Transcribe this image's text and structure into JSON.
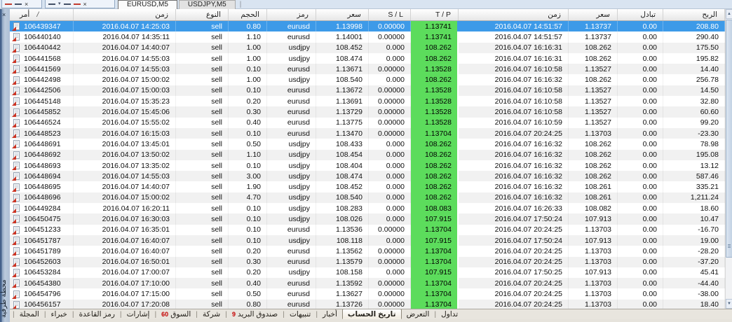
{
  "terminal": {
    "vertical_label": "محطة طرفية",
    "close_glyph": "×"
  },
  "icons": {
    "up_arrow": "▲",
    "down_arrow": "▼",
    "close": "×",
    "separator": "|",
    "sort": "/",
    "caret": "▾"
  },
  "chart_tabs": [
    {
      "label": "EURUSD,M5",
      "active": true
    },
    {
      "label": "USDJPY,M5",
      "active": false
    }
  ],
  "table": {
    "columns": [
      {
        "key": "order",
        "label": "أمر"
      },
      {
        "key": "open_time",
        "label": "زمن"
      },
      {
        "key": "type",
        "label": "النوع"
      },
      {
        "key": "volume",
        "label": "الحجم"
      },
      {
        "key": "symbol",
        "label": "رمز"
      },
      {
        "key": "open_price",
        "label": "سعر"
      },
      {
        "key": "sl",
        "label": "S / L"
      },
      {
        "key": "tp",
        "label": "T / P"
      },
      {
        "key": "close_time",
        "label": "زمن"
      },
      {
        "key": "close_price",
        "label": "سعر"
      },
      {
        "key": "swap",
        "label": "تبادل"
      },
      {
        "key": "profit",
        "label": "الربح"
      }
    ],
    "rows": [
      {
        "order": "106439347",
        "open_time": "2016.04.07 14:25:03",
        "type": "sell",
        "volume": "0.80",
        "symbol": "eurusd",
        "open_price": "1.13998",
        "sl": "0.00000",
        "tp": "1.13741",
        "close_time": "2016.04.07 14:51:57",
        "close_price": "1.13737",
        "swap": "0.00",
        "profit": "208.80",
        "selected": true
      },
      {
        "order": "106440140",
        "open_time": "2016.04.07 14:35:11",
        "type": "sell",
        "volume": "1.10",
        "symbol": "eurusd",
        "open_price": "1.14001",
        "sl": "0.00000",
        "tp": "1.13741",
        "close_time": "2016.04.07 14:51:57",
        "close_price": "1.13737",
        "swap": "0.00",
        "profit": "290.40"
      },
      {
        "order": "106440442",
        "open_time": "2016.04.07 14:40:07",
        "type": "sell",
        "volume": "1.00",
        "symbol": "usdjpy",
        "open_price": "108.452",
        "sl": "0.000",
        "tp": "108.262",
        "close_time": "2016.04.07 16:16:31",
        "close_price": "108.262",
        "swap": "0.00",
        "profit": "175.50"
      },
      {
        "order": "106441568",
        "open_time": "2016.04.07 14:55:03",
        "type": "sell",
        "volume": "1.00",
        "symbol": "usdjpy",
        "open_price": "108.474",
        "sl": "0.000",
        "tp": "108.262",
        "close_time": "2016.04.07 16:16:31",
        "close_price": "108.262",
        "swap": "0.00",
        "profit": "195.82"
      },
      {
        "order": "106441569",
        "open_time": "2016.04.07 14:55:03",
        "type": "sell",
        "volume": "0.10",
        "symbol": "eurusd",
        "open_price": "1.13671",
        "sl": "0.00000",
        "tp": "1.13528",
        "close_time": "2016.04.07 16:10:58",
        "close_price": "1.13527",
        "swap": "0.00",
        "profit": "14.40"
      },
      {
        "order": "106442498",
        "open_time": "2016.04.07 15:00:02",
        "type": "sell",
        "volume": "1.00",
        "symbol": "usdjpy",
        "open_price": "108.540",
        "sl": "0.000",
        "tp": "108.262",
        "close_time": "2016.04.07 16:16:32",
        "close_price": "108.262",
        "swap": "0.00",
        "profit": "256.78"
      },
      {
        "order": "106442506",
        "open_time": "2016.04.07 15:00:03",
        "type": "sell",
        "volume": "0.10",
        "symbol": "eurusd",
        "open_price": "1.13672",
        "sl": "0.00000",
        "tp": "1.13528",
        "close_time": "2016.04.07 16:10:58",
        "close_price": "1.13527",
        "swap": "0.00",
        "profit": "14.50"
      },
      {
        "order": "106445148",
        "open_time": "2016.04.07 15:35:23",
        "type": "sell",
        "volume": "0.20",
        "symbol": "eurusd",
        "open_price": "1.13691",
        "sl": "0.00000",
        "tp": "1.13528",
        "close_time": "2016.04.07 16:10:58",
        "close_price": "1.13527",
        "swap": "0.00",
        "profit": "32.80"
      },
      {
        "order": "106445852",
        "open_time": "2016.04.07 15:45:06",
        "type": "sell",
        "volume": "0.30",
        "symbol": "eurusd",
        "open_price": "1.13729",
        "sl": "0.00000",
        "tp": "1.13528",
        "close_time": "2016.04.07 16:10:58",
        "close_price": "1.13527",
        "swap": "0.00",
        "profit": "60.60"
      },
      {
        "order": "106446524",
        "open_time": "2016.04.07 15:55:02",
        "type": "sell",
        "volume": "0.40",
        "symbol": "eurusd",
        "open_price": "1.13775",
        "sl": "0.00000",
        "tp": "1.13528",
        "close_time": "2016.04.07 16:10:59",
        "close_price": "1.13527",
        "swap": "0.00",
        "profit": "99.20"
      },
      {
        "order": "106448523",
        "open_time": "2016.04.07 16:15:03",
        "type": "sell",
        "volume": "0.10",
        "symbol": "eurusd",
        "open_price": "1.13470",
        "sl": "0.00000",
        "tp": "1.13704",
        "close_time": "2016.04.07 20:24:25",
        "close_price": "1.13703",
        "swap": "0.00",
        "profit": "-23.30"
      },
      {
        "order": "106448691",
        "open_time": "2016.04.07 13:45:01",
        "type": "sell",
        "volume": "0.50",
        "symbol": "usdjpy",
        "open_price": "108.433",
        "sl": "0.000",
        "tp": "108.262",
        "close_time": "2016.04.07 16:16:32",
        "close_price": "108.262",
        "swap": "0.00",
        "profit": "78.98"
      },
      {
        "order": "106448692",
        "open_time": "2016.04.07 13:50:02",
        "type": "sell",
        "volume": "1.10",
        "symbol": "usdjpy",
        "open_price": "108.454",
        "sl": "0.000",
        "tp": "108.262",
        "close_time": "2016.04.07 16:16:32",
        "close_price": "108.262",
        "swap": "0.00",
        "profit": "195.08"
      },
      {
        "order": "106448693",
        "open_time": "2016.04.07 13:35:02",
        "type": "sell",
        "volume": "0.10",
        "symbol": "usdjpy",
        "open_price": "108.404",
        "sl": "0.000",
        "tp": "108.262",
        "close_time": "2016.04.07 16:16:32",
        "close_price": "108.262",
        "swap": "0.00",
        "profit": "13.12"
      },
      {
        "order": "106448694",
        "open_time": "2016.04.07 14:55:03",
        "type": "sell",
        "volume": "3.00",
        "symbol": "usdjpy",
        "open_price": "108.474",
        "sl": "0.000",
        "tp": "108.262",
        "close_time": "2016.04.07 16:16:32",
        "close_price": "108.262",
        "swap": "0.00",
        "profit": "587.46"
      },
      {
        "order": "106448695",
        "open_time": "2016.04.07 14:40:07",
        "type": "sell",
        "volume": "1.90",
        "symbol": "usdjpy",
        "open_price": "108.452",
        "sl": "0.000",
        "tp": "108.262",
        "close_time": "2016.04.07 16:16:32",
        "close_price": "108.261",
        "swap": "0.00",
        "profit": "335.21"
      },
      {
        "order": "106448696",
        "open_time": "2016.04.07 15:00:02",
        "type": "sell",
        "volume": "4.70",
        "symbol": "usdjpy",
        "open_price": "108.540",
        "sl": "0.000",
        "tp": "108.262",
        "close_time": "2016.04.07 16:16:32",
        "close_price": "108.261",
        "swap": "0.00",
        "profit": "1,211.24"
      },
      {
        "order": "106449284",
        "open_time": "2016.04.07 16:20:11",
        "type": "sell",
        "volume": "0.10",
        "symbol": "usdjpy",
        "open_price": "108.283",
        "sl": "0.000",
        "tp": "108.083",
        "close_time": "2016.04.07 16:26:33",
        "close_price": "108.082",
        "swap": "0.00",
        "profit": "18.60"
      },
      {
        "order": "106450475",
        "open_time": "2016.04.07 16:30:03",
        "type": "sell",
        "volume": "0.10",
        "symbol": "usdjpy",
        "open_price": "108.026",
        "sl": "0.000",
        "tp": "107.915",
        "close_time": "2016.04.07 17:50:24",
        "close_price": "107.913",
        "swap": "0.00",
        "profit": "10.47"
      },
      {
        "order": "106451233",
        "open_time": "2016.04.07 16:35:01",
        "type": "sell",
        "volume": "0.10",
        "symbol": "eurusd",
        "open_price": "1.13536",
        "sl": "0.00000",
        "tp": "1.13704",
        "close_time": "2016.04.07 20:24:25",
        "close_price": "1.13703",
        "swap": "0.00",
        "profit": "-16.70"
      },
      {
        "order": "106451787",
        "open_time": "2016.04.07 16:40:07",
        "type": "sell",
        "volume": "0.10",
        "symbol": "usdjpy",
        "open_price": "108.118",
        "sl": "0.000",
        "tp": "107.915",
        "close_time": "2016.04.07 17:50:24",
        "close_price": "107.913",
        "swap": "0.00",
        "profit": "19.00"
      },
      {
        "order": "106451789",
        "open_time": "2016.04.07 16:40:07",
        "type": "sell",
        "volume": "0.20",
        "symbol": "eurusd",
        "open_price": "1.13562",
        "sl": "0.00000",
        "tp": "1.13704",
        "close_time": "2016.04.07 20:24:25",
        "close_price": "1.13703",
        "swap": "0.00",
        "profit": "-28.20"
      },
      {
        "order": "106452603",
        "open_time": "2016.04.07 16:50:01",
        "type": "sell",
        "volume": "0.30",
        "symbol": "eurusd",
        "open_price": "1.13579",
        "sl": "0.00000",
        "tp": "1.13704",
        "close_time": "2016.04.07 20:24:25",
        "close_price": "1.13703",
        "swap": "0.00",
        "profit": "-37.20"
      },
      {
        "order": "106453284",
        "open_time": "2016.04.07 17:00:07",
        "type": "sell",
        "volume": "0.20",
        "symbol": "usdjpy",
        "open_price": "108.158",
        "sl": "0.000",
        "tp": "107.915",
        "close_time": "2016.04.07 17:50:25",
        "close_price": "107.913",
        "swap": "0.00",
        "profit": "45.41"
      },
      {
        "order": "106454380",
        "open_time": "2016.04.07 17:10:00",
        "type": "sell",
        "volume": "0.40",
        "symbol": "eurusd",
        "open_price": "1.13592",
        "sl": "0.00000",
        "tp": "1.13704",
        "close_time": "2016.04.07 20:24:25",
        "close_price": "1.13703",
        "swap": "0.00",
        "profit": "-44.40"
      },
      {
        "order": "106454796",
        "open_time": "2016.04.07 17:15:00",
        "type": "sell",
        "volume": "0.50",
        "symbol": "eurusd",
        "open_price": "1.13627",
        "sl": "0.00000",
        "tp": "1.13704",
        "close_time": "2016.04.07 20:24:25",
        "close_price": "1.13703",
        "swap": "0.00",
        "profit": "-38.00"
      },
      {
        "order": "106456157",
        "open_time": "2016.04.07 17:20:08",
        "type": "sell",
        "volume": "0.80",
        "symbol": "eurusd",
        "open_price": "1.13726",
        "sl": "0.00000",
        "tp": "1.13704",
        "close_time": "2016.04.07 20:24:25",
        "close_price": "1.13703",
        "swap": "0.00",
        "profit": "18.40"
      }
    ]
  },
  "bottom_tabs": [
    {
      "label": "المجلة"
    },
    {
      "label": "خبراء"
    },
    {
      "label": "رمز القاعدة"
    },
    {
      "label": "إشارات"
    },
    {
      "label": "السوق",
      "badge": "60"
    },
    {
      "label": "شركة"
    },
    {
      "label": "صندوق البريد",
      "badge": "9"
    },
    {
      "label": "تنبيهات"
    },
    {
      "label": "أخبار"
    },
    {
      "label": "تاريخ الحساب",
      "active": true
    },
    {
      "label": "التعرض"
    },
    {
      "label": "تداول"
    }
  ]
}
